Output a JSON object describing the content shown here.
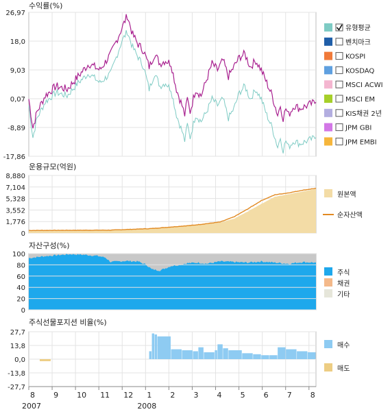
{
  "chart_data": [
    {
      "id": "return",
      "type": "line",
      "title": "수익률(%)",
      "yticks": [
        "26,97",
        "18,0",
        "9,03",
        "0,07",
        "-8,89",
        "-17,86"
      ],
      "ylim": [
        -17.86,
        26.97
      ],
      "grid": true,
      "legend_position": "right",
      "series": [
        {
          "name": "유형평균",
          "color": "#7ecbc4",
          "checked": true,
          "points": [
            [
              0,
              -2
            ],
            [
              3,
              -12
            ],
            [
              6,
              -6
            ],
            [
              12,
              -1
            ],
            [
              20,
              2
            ],
            [
              28,
              1
            ],
            [
              36,
              5
            ],
            [
              44,
              8
            ],
            [
              52,
              5
            ],
            [
              60,
              8
            ],
            [
              68,
              18
            ],
            [
              72,
              21
            ],
            [
              76,
              16
            ],
            [
              80,
              13
            ],
            [
              84,
              10
            ],
            [
              88,
              3
            ],
            [
              92,
              8
            ],
            [
              96,
              4
            ],
            [
              100,
              5
            ],
            [
              104,
              3
            ],
            [
              108,
              -5
            ],
            [
              112,
              -10
            ],
            [
              114,
              -13
            ],
            [
              116,
              -8
            ],
            [
              118,
              -12
            ],
            [
              122,
              -5
            ],
            [
              126,
              -7
            ],
            [
              130,
              -4
            ],
            [
              134,
              0
            ],
            [
              138,
              -2
            ],
            [
              142,
              0
            ],
            [
              146,
              -6
            ],
            [
              150,
              -3
            ],
            [
              154,
              2
            ],
            [
              158,
              4
            ],
            [
              162,
              0
            ],
            [
              166,
              3
            ],
            [
              170,
              0
            ],
            [
              174,
              -5
            ],
            [
              178,
              -9
            ],
            [
              182,
              -15
            ],
            [
              184,
              -12
            ],
            [
              186,
              -16
            ],
            [
              188,
              -13
            ],
            [
              190,
              -15
            ],
            [
              194,
              -13
            ],
            [
              198,
              -14
            ],
            [
              204,
              -13
            ],
            [
              210,
              -12
            ]
          ]
        },
        {
          "name": "벤치마크",
          "color": "#1f5ea8",
          "checked": false
        },
        {
          "name": "KOSPI",
          "color": "#f07a3a",
          "checked": false
        },
        {
          "name": "KOSDAQ",
          "color": "#5fa0e0",
          "checked": false
        },
        {
          "name": "MSCI ACWI",
          "color": "#f4b6d0",
          "checked": false
        },
        {
          "name": "MSCI EM",
          "color": "#a6cf2a",
          "checked": false
        },
        {
          "name": "KIS채권 2년",
          "color": "#b3aee0",
          "checked": false
        },
        {
          "name": "JPM GBI",
          "color": "#d277e6",
          "checked": false
        },
        {
          "name": "JPM EMBI",
          "color": "#f6b63c",
          "checked": false
        }
      ],
      "series_drawn": [
        {
          "name": "averaged_fund",
          "color": "#a8208f",
          "points": [
            [
              0,
              0
            ],
            [
              3,
              -9
            ],
            [
              6,
              -4
            ],
            [
              12,
              1
            ],
            [
              20,
              4
            ],
            [
              28,
              3
            ],
            [
              36,
              7
            ],
            [
              44,
              11
            ],
            [
              52,
              9
            ],
            [
              60,
              14
            ],
            [
              68,
              22
            ],
            [
              72,
              26
            ],
            [
              76,
              20
            ],
            [
              80,
              17
            ],
            [
              84,
              15
            ],
            [
              88,
              10
            ],
            [
              92,
              14
            ],
            [
              96,
              11
            ],
            [
              100,
              12
            ],
            [
              104,
              11
            ],
            [
              108,
              3
            ],
            [
              112,
              -2
            ],
            [
              114,
              -5
            ],
            [
              116,
              0
            ],
            [
              118,
              -4
            ],
            [
              122,
              3
            ],
            [
              126,
              1
            ],
            [
              130,
              6
            ],
            [
              134,
              11
            ],
            [
              138,
              9
            ],
            [
              142,
              12
            ],
            [
              146,
              7
            ],
            [
              150,
              10
            ],
            [
              154,
              13
            ],
            [
              158,
              14
            ],
            [
              162,
              10
            ],
            [
              166,
              12
            ],
            [
              170,
              9
            ],
            [
              174,
              5
            ],
            [
              178,
              1
            ],
            [
              182,
              -5
            ],
            [
              184,
              -2
            ],
            [
              186,
              -6
            ],
            [
              188,
              -3
            ],
            [
              190,
              -5
            ],
            [
              194,
              -2
            ],
            [
              198,
              -3
            ],
            [
              204,
              -2
            ],
            [
              210,
              -1
            ]
          ]
        }
      ]
    },
    {
      "id": "aum",
      "type": "area",
      "title": "운용규모(억원)",
      "yticks": [
        "8,880",
        "7,104",
        "5,328",
        "3,552",
        "1,776",
        "0"
      ],
      "ylim": [
        0,
        8880
      ],
      "legend_position": "right",
      "series": [
        {
          "name": "원본액",
          "color": "#f3dca6",
          "points": [
            [
              0,
              400
            ],
            [
              60,
              450
            ],
            [
              90,
              700
            ],
            [
              120,
              1200
            ],
            [
              140,
              1600
            ],
            [
              150,
              2200
            ],
            [
              160,
              3300
            ],
            [
              170,
              4500
            ],
            [
              180,
              5600
            ],
            [
              190,
              6000
            ],
            [
              200,
              6400
            ],
            [
              210,
              6800
            ]
          ]
        },
        {
          "name": "순자산액",
          "color": "#e28a22",
          "points": [
            [
              0,
              400
            ],
            [
              60,
              450
            ],
            [
              90,
              700
            ],
            [
              120,
              1200
            ],
            [
              140,
              1700
            ],
            [
              150,
              2500
            ],
            [
              160,
              3700
            ],
            [
              170,
              5000
            ],
            [
              180,
              5900
            ],
            [
              190,
              6200
            ],
            [
              200,
              6600
            ],
            [
              210,
              6900
            ]
          ]
        }
      ]
    },
    {
      "id": "assets",
      "type": "area",
      "title": "자산구성(%)",
      "yticks": [
        "100",
        "80",
        "60",
        "40",
        "20",
        "0"
      ],
      "ylim": [
        0,
        100
      ],
      "legend_position": "right",
      "series": [
        {
          "name": "주식",
          "color": "#1ea8ec",
          "points": [
            [
              0,
              92
            ],
            [
              10,
              95
            ],
            [
              20,
              97
            ],
            [
              30,
              99
            ],
            [
              40,
              98
            ],
            [
              50,
              96
            ],
            [
              56,
              93
            ],
            [
              60,
              85
            ],
            [
              70,
              87
            ],
            [
              80,
              86
            ],
            [
              86,
              80
            ],
            [
              90,
              72
            ],
            [
              96,
              70
            ],
            [
              104,
              78
            ],
            [
              110,
              80
            ],
            [
              116,
              83
            ],
            [
              124,
              84
            ],
            [
              130,
              82
            ],
            [
              140,
              86
            ],
            [
              150,
              85
            ],
            [
              160,
              84
            ],
            [
              170,
              86
            ],
            [
              180,
              84
            ],
            [
              190,
              82
            ],
            [
              200,
              85
            ],
            [
              210,
              84
            ]
          ]
        },
        {
          "name": "채권",
          "color": "#f4b98a"
        },
        {
          "name": "기타",
          "color": "#e6e6da"
        }
      ]
    },
    {
      "id": "futures",
      "type": "bar",
      "title": "주식선물포지션 비율(%)",
      "yticks": [
        "27,7",
        "13,8",
        "0,0",
        "-13,8",
        "-27,7"
      ],
      "ylim": [
        -27.7,
        27.7
      ],
      "legend_position": "right",
      "series": [
        {
          "name": "매수",
          "color": "#8ecbf2",
          "points": [
            [
              88,
              8
            ],
            [
              90,
              26
            ],
            [
              92,
              25
            ],
            [
              94,
              23
            ],
            [
              104,
              10
            ],
            [
              112,
              9
            ],
            [
              120,
              8
            ],
            [
              124,
              12
            ],
            [
              128,
              7
            ],
            [
              136,
              9
            ],
            [
              138,
              15
            ],
            [
              142,
              11
            ],
            [
              146,
              9
            ],
            [
              156,
              6
            ],
            [
              164,
              5
            ],
            [
              170,
              4
            ],
            [
              176,
              4
            ],
            [
              182,
              12
            ],
            [
              188,
              10
            ],
            [
              196,
              8
            ],
            [
              204,
              7
            ],
            [
              210,
              6
            ]
          ]
        },
        {
          "name": "매도",
          "color": "#edcd83",
          "points": [
            [
              8,
              -2
            ],
            [
              16,
              -2
            ]
          ]
        }
      ]
    }
  ],
  "x_axis": {
    "months": [
      "8",
      "9",
      "10",
      "11",
      "12",
      "1",
      "2",
      "3",
      "4",
      "5",
      "6",
      "7",
      "8"
    ],
    "years": [
      "2007",
      "2008"
    ]
  }
}
